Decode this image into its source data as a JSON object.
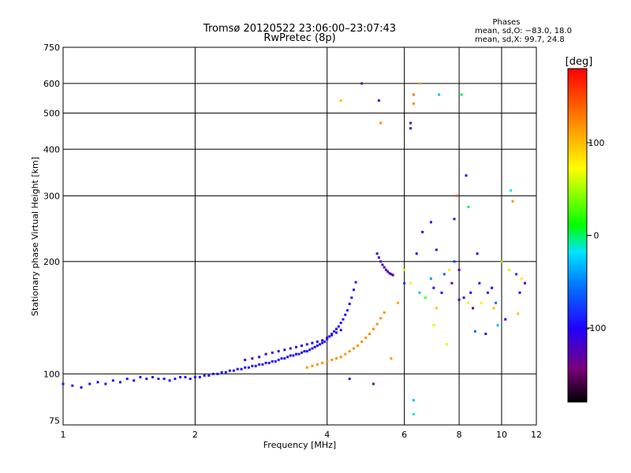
{
  "chart_data": {
    "type": "scatter",
    "title": "Tromsø 20120522 23:06:00–23:07:43",
    "subtitle": "RwPretec (8p)",
    "xlabel": "Frequency [MHz]",
    "ylabel": "Stationary phase Virtual Height [km]",
    "x_scale": "log",
    "y_scale": "log",
    "xlim": [
      1,
      12
    ],
    "ylim": [
      73,
      750
    ],
    "x_ticks": [
      1,
      2,
      4,
      6,
      8,
      10,
      12
    ],
    "x_tick_labels": [
      "1",
      "2",
      "4",
      "6",
      "8",
      "10",
      "12"
    ],
    "y_ticks": [
      75,
      100,
      200,
      300,
      400,
      500,
      600,
      750
    ],
    "y_tick_labels": [
      "75",
      "100",
      "200",
      "300",
      "400",
      "500",
      "600",
      "750"
    ],
    "grid": true,
    "info": {
      "title": "Phases",
      "line1": "mean, sd,O: −83.0, 18.0",
      "line2": "mean, sd,X:  99.7, 24.8"
    },
    "colorbar": {
      "label": "[deg]",
      "range": [
        -180,
        180
      ],
      "ticks": [
        100,
        0,
        -100
      ],
      "tick_labels": [
        "100",
        "0",
        "-100"
      ],
      "colormap": [
        "#000000",
        "#7a007a",
        "#2000ff",
        "#0080ff",
        "#00e5ff",
        "#00ff00",
        "#ffff00",
        "#ff9900",
        "#ff0000"
      ]
    },
    "series": [
      {
        "values": [
          [
            1.0,
            94,
            -95
          ],
          [
            1.05,
            93,
            -95
          ],
          [
            1.1,
            92,
            -95
          ],
          [
            1.15,
            94,
            -95
          ],
          [
            1.2,
            95,
            -95
          ],
          [
            1.25,
            94,
            -95
          ],
          [
            1.3,
            96,
            -95
          ],
          [
            1.35,
            95,
            -95
          ],
          [
            1.4,
            97,
            -95
          ],
          [
            1.45,
            96,
            -95
          ],
          [
            1.5,
            98,
            -95
          ],
          [
            1.55,
            97,
            -95
          ],
          [
            1.6,
            98,
            -95
          ],
          [
            1.65,
            97,
            -95
          ],
          [
            1.7,
            97,
            -95
          ],
          [
            1.75,
            96,
            -95
          ],
          [
            1.8,
            97,
            -95
          ],
          [
            1.85,
            98,
            -95
          ],
          [
            1.9,
            98,
            -95
          ],
          [
            1.95,
            97,
            -95
          ],
          [
            2.0,
            98,
            -95
          ],
          [
            2.05,
            98,
            -95
          ],
          [
            2.1,
            99,
            -95
          ],
          [
            2.15,
            99,
            -95
          ],
          [
            2.2,
            100,
            -95
          ],
          [
            2.25,
            100,
            -95
          ],
          [
            2.3,
            101,
            -95
          ],
          [
            2.35,
            101,
            -95
          ],
          [
            2.4,
            102,
            -95
          ],
          [
            2.45,
            102,
            -95
          ],
          [
            2.5,
            103,
            -95
          ],
          [
            2.55,
            103,
            -95
          ],
          [
            2.6,
            104,
            -95
          ],
          [
            2.65,
            104,
            -95
          ],
          [
            2.7,
            105,
            -95
          ],
          [
            2.75,
            105,
            -95
          ],
          [
            2.8,
            106,
            -95
          ],
          [
            2.85,
            106,
            -95
          ],
          [
            2.9,
            107,
            -95
          ],
          [
            2.95,
            107,
            -95
          ],
          [
            3.0,
            108,
            -95
          ],
          [
            3.05,
            108,
            -95
          ],
          [
            3.1,
            109,
            -95
          ],
          [
            3.15,
            110,
            -95
          ],
          [
            3.2,
            110,
            -95
          ],
          [
            3.25,
            111,
            -95
          ],
          [
            3.3,
            112,
            -95
          ],
          [
            3.35,
            112,
            -95
          ],
          [
            3.4,
            113,
            -95
          ],
          [
            3.45,
            113,
            -95
          ],
          [
            3.5,
            114,
            -95
          ],
          [
            3.55,
            115,
            -95
          ],
          [
            3.6,
            115,
            -95
          ],
          [
            3.65,
            116,
            -95
          ],
          [
            3.7,
            117,
            -95
          ],
          [
            3.75,
            118,
            -95
          ],
          [
            3.8,
            119,
            -95
          ],
          [
            3.85,
            120,
            -95
          ],
          [
            3.9,
            121,
            -95
          ],
          [
            3.95,
            122,
            -95
          ],
          [
            4.0,
            124,
            -95
          ],
          [
            4.05,
            126,
            -95
          ],
          [
            4.1,
            128,
            -95
          ],
          [
            4.15,
            130,
            -95
          ],
          [
            4.2,
            132,
            -95
          ],
          [
            4.25,
            134,
            -95
          ],
          [
            4.3,
            137,
            -95
          ],
          [
            4.35,
            140,
            -95
          ],
          [
            4.4,
            144,
            -95
          ],
          [
            4.45,
            148,
            -95
          ],
          [
            4.5,
            154,
            -95
          ],
          [
            4.55,
            160,
            -95
          ],
          [
            4.6,
            168,
            -95
          ],
          [
            4.65,
            176,
            -95
          ]
        ]
      },
      {
        "values": [
          [
            2.6,
            109,
            -110
          ],
          [
            2.7,
            110,
            -110
          ],
          [
            2.8,
            111,
            -110
          ],
          [
            2.9,
            113,
            -110
          ],
          [
            3.0,
            114,
            -110
          ],
          [
            3.1,
            115,
            -110
          ],
          [
            3.2,
            116,
            -110
          ],
          [
            3.3,
            117,
            -110
          ],
          [
            3.4,
            118,
            -110
          ],
          [
            3.5,
            119,
            -110
          ],
          [
            3.6,
            120,
            -110
          ],
          [
            3.7,
            121,
            -110
          ],
          [
            3.8,
            122,
            -110
          ],
          [
            3.9,
            123,
            -110
          ],
          [
            4.0,
            125,
            -110
          ],
          [
            4.1,
            127,
            -110
          ],
          [
            4.2,
            129,
            -110
          ],
          [
            4.3,
            131,
            -110
          ]
        ]
      },
      {
        "values": [
          [
            3.6,
            104,
            120
          ],
          [
            3.7,
            105,
            120
          ],
          [
            3.8,
            106,
            120
          ],
          [
            3.9,
            107,
            120
          ],
          [
            4.0,
            108,
            120
          ],
          [
            4.1,
            109,
            120
          ],
          [
            4.2,
            110,
            120
          ],
          [
            4.3,
            111,
            120
          ],
          [
            4.4,
            113,
            120
          ],
          [
            4.5,
            115,
            120
          ],
          [
            4.6,
            117,
            120
          ],
          [
            4.7,
            119,
            120
          ],
          [
            4.8,
            122,
            120
          ],
          [
            4.9,
            125,
            120
          ],
          [
            5.0,
            128,
            120
          ],
          [
            5.1,
            132,
            120
          ],
          [
            5.2,
            136,
            120
          ],
          [
            5.3,
            141,
            120
          ],
          [
            5.4,
            146,
            120
          ]
        ]
      },
      {
        "values": [
          [
            5.2,
            210,
            -120
          ],
          [
            5.25,
            205,
            -120
          ],
          [
            5.3,
            200,
            -120
          ],
          [
            5.35,
            196,
            -120
          ],
          [
            5.4,
            193,
            -120
          ],
          [
            5.45,
            190,
            -120
          ],
          [
            5.5,
            188,
            -120
          ],
          [
            5.55,
            186,
            -120
          ],
          [
            5.6,
            185,
            -120
          ],
          [
            5.65,
            184,
            -120
          ]
        ]
      },
      {
        "values": [
          [
            4.3,
            540,
            100
          ],
          [
            5.3,
            470,
            120
          ],
          [
            5.25,
            540,
            -130
          ],
          [
            4.8,
            600,
            -130
          ],
          [
            6.3,
            560,
            130
          ],
          [
            6.3,
            530,
            120
          ],
          [
            6.2,
            470,
            -130
          ],
          [
            6.2,
            455,
            -120
          ],
          [
            7.2,
            560,
            -30
          ],
          [
            8.1,
            560,
            0
          ],
          [
            6.5,
            600,
            110
          ],
          [
            7.9,
            300,
            140
          ],
          [
            8.3,
            340,
            -90
          ],
          [
            10.5,
            310,
            -20
          ],
          [
            10.6,
            290,
            120
          ],
          [
            8.4,
            280,
            0
          ],
          [
            7.8,
            260,
            -120
          ],
          [
            6.9,
            255,
            -120
          ],
          [
            6.6,
            240,
            -110
          ],
          [
            7.1,
            215,
            -120
          ],
          [
            6.2,
            175,
            80
          ],
          [
            6.5,
            165,
            -30
          ],
          [
            6.7,
            160,
            30
          ],
          [
            7.0,
            170,
            -120
          ],
          [
            7.3,
            165,
            -100
          ],
          [
            7.7,
            175,
            -150
          ],
          [
            8.0,
            158,
            -110
          ],
          [
            8.2,
            160,
            -120
          ],
          [
            8.5,
            165,
            -100
          ],
          [
            8.9,
            175,
            -120
          ],
          [
            9.3,
            165,
            -90
          ],
          [
            9.7,
            155,
            -60
          ],
          [
            10.0,
            200,
            40
          ],
          [
            10.4,
            190,
            60
          ],
          [
            10.8,
            185,
            -80
          ],
          [
            11.1,
            180,
            80
          ],
          [
            11.3,
            175,
            -130
          ],
          [
            6.0,
            190,
            60
          ],
          [
            5.8,
            155,
            110
          ],
          [
            7.6,
            190,
            80
          ],
          [
            8.6,
            150,
            -150
          ],
          [
            7.0,
            135,
            60
          ],
          [
            7.5,
            120,
            60
          ],
          [
            8.7,
            130,
            -60
          ],
          [
            9.2,
            128,
            -120
          ],
          [
            9.8,
            135,
            -30
          ],
          [
            10.2,
            140,
            -100
          ],
          [
            10.9,
            145,
            100
          ],
          [
            5.6,
            110,
            120
          ],
          [
            6.3,
            85,
            -30
          ],
          [
            6.3,
            78,
            -10
          ],
          [
            4.5,
            97,
            -120
          ],
          [
            5.1,
            94,
            -140
          ],
          [
            6.0,
            175,
            -80
          ],
          [
            6.9,
            180,
            -40
          ],
          [
            7.4,
            185,
            -60
          ],
          [
            8.0,
            190,
            -120
          ],
          [
            8.8,
            210,
            -100
          ],
          [
            9.5,
            170,
            -110
          ],
          [
            6.4,
            210,
            -100
          ],
          [
            7.8,
            200,
            -80
          ],
          [
            7.1,
            150,
            100
          ],
          [
            8.4,
            155,
            60
          ],
          [
            9.0,
            155,
            80
          ],
          [
            9.6,
            150,
            100
          ],
          [
            11.0,
            165,
            -100
          ]
        ]
      }
    ]
  }
}
